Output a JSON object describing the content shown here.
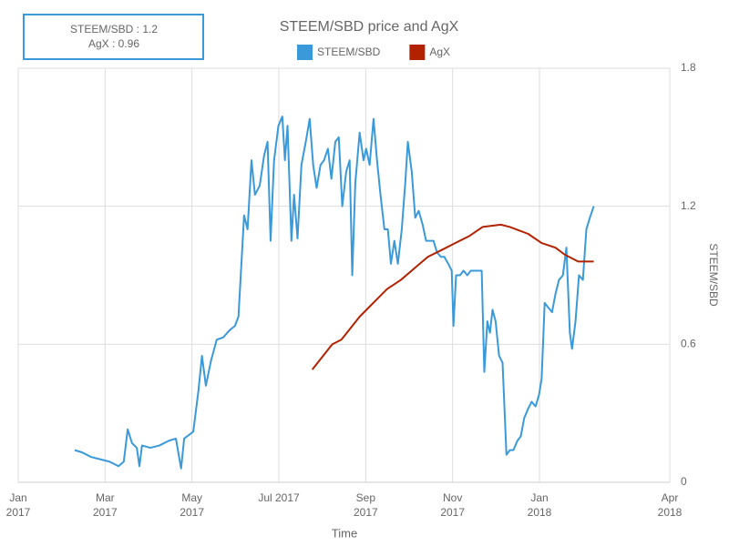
{
  "chart_data": {
    "type": "line",
    "title": "STEEM/SBD price and AgX",
    "x_label": "Time",
    "y_label": "STEEM/SBD",
    "tooltip": [
      "STEEM/SBD : 1.2",
      "AgX : 0.96"
    ],
    "xlim": [
      0,
      15
    ],
    "xticks": [
      {
        "value": 0,
        "label": "Jan\n2017"
      },
      {
        "value": 2,
        "label": "Mar\n2017"
      },
      {
        "value": 4,
        "label": "May\n2017"
      },
      {
        "value": 6,
        "label": "Jul 2017"
      },
      {
        "value": 8,
        "label": "Sep\n2017"
      },
      {
        "value": 10,
        "label": "Nov\n2017"
      },
      {
        "value": 12,
        "label": "Jan\n2018"
      },
      {
        "value": 15,
        "label": "Apr\n2018"
      }
    ],
    "ylim": [
      0,
      1.8
    ],
    "yticks": [
      0,
      0.6,
      1.2,
      1.8
    ],
    "grid": true,
    "series": [
      {
        "name": "STEEM/SBD",
        "color": "#3a9ad9",
        "x": [
          1.3,
          1.47,
          1.68,
          1.89,
          2.1,
          2.31,
          2.43,
          2.52,
          2.62,
          2.73,
          2.79,
          2.85,
          3.04,
          3.25,
          3.46,
          3.63,
          3.75,
          3.82,
          4.03,
          4.15,
          4.23,
          4.32,
          4.44,
          4.57,
          4.72,
          4.86,
          4.99,
          5.07,
          5.2,
          5.28,
          5.37,
          5.45,
          5.56,
          5.66,
          5.74,
          5.81,
          5.89,
          5.99,
          6.08,
          6.14,
          6.2,
          6.29,
          6.35,
          6.43,
          6.52,
          6.62,
          6.71,
          6.79,
          6.87,
          6.96,
          7.04,
          7.13,
          7.21,
          7.3,
          7.38,
          7.46,
          7.55,
          7.63,
          7.69,
          7.76,
          7.86,
          7.95,
          8.01,
          8.09,
          8.18,
          8.26,
          8.34,
          8.43,
          8.51,
          8.58,
          8.66,
          8.74,
          8.83,
          8.91,
          8.97,
          9.06,
          9.14,
          9.22,
          9.31,
          9.39,
          9.48,
          9.56,
          9.64,
          9.73,
          9.81,
          9.9,
          9.98,
          10.02,
          10.08,
          10.17,
          10.25,
          10.34,
          10.42,
          10.5,
          10.59,
          10.67,
          10.73,
          10.8,
          10.86,
          10.92,
          10.99,
          11.07,
          11.15,
          11.24,
          11.32,
          11.4,
          11.49,
          11.57,
          11.65,
          11.74,
          11.82,
          11.91,
          11.99,
          12.05,
          12.12,
          12.2,
          12.29,
          12.37,
          12.45,
          12.54,
          12.62,
          12.7,
          12.75,
          12.83,
          12.91,
          13.0,
          13.08,
          13.16,
          13.25
        ],
        "values": [
          0.14,
          0.13,
          0.11,
          0.1,
          0.09,
          0.07,
          0.09,
          0.23,
          0.17,
          0.15,
          0.07,
          0.16,
          0.15,
          0.16,
          0.18,
          0.19,
          0.06,
          0.19,
          0.22,
          0.4,
          0.55,
          0.42,
          0.53,
          0.62,
          0.63,
          0.66,
          0.68,
          0.72,
          1.16,
          1.1,
          1.4,
          1.25,
          1.29,
          1.42,
          1.48,
          1.05,
          1.4,
          1.55,
          1.59,
          1.4,
          1.55,
          1.05,
          1.25,
          1.06,
          1.38,
          1.48,
          1.58,
          1.38,
          1.28,
          1.38,
          1.4,
          1.45,
          1.32,
          1.48,
          1.5,
          1.2,
          1.35,
          1.4,
          0.9,
          1.3,
          1.52,
          1.4,
          1.45,
          1.38,
          1.58,
          1.4,
          1.25,
          1.1,
          1.1,
          0.95,
          1.05,
          0.95,
          1.1,
          1.3,
          1.48,
          1.35,
          1.15,
          1.18,
          1.12,
          1.05,
          1.05,
          1.05,
          1.0,
          0.98,
          0.98,
          0.95,
          0.92,
          0.68,
          0.9,
          0.9,
          0.92,
          0.9,
          0.92,
          0.92,
          0.92,
          0.92,
          0.48,
          0.7,
          0.65,
          0.75,
          0.7,
          0.55,
          0.52,
          0.12,
          0.14,
          0.14,
          0.18,
          0.2,
          0.28,
          0.32,
          0.35,
          0.33,
          0.38,
          0.45,
          0.78,
          0.76,
          0.74,
          0.82,
          0.88,
          0.9,
          1.02,
          0.65,
          0.58,
          0.7,
          0.9,
          0.88,
          1.1,
          1.15,
          1.2
        ]
      },
      {
        "name": "AgX",
        "color": "#b22200",
        "x": [
          6.77,
          7.02,
          7.23,
          7.44,
          7.65,
          7.86,
          8.07,
          8.28,
          8.49,
          8.81,
          9.12,
          9.43,
          9.75,
          10.06,
          10.38,
          10.69,
          11.11,
          11.32,
          11.74,
          12.05,
          12.37,
          12.58,
          12.89,
          13.1,
          13.25
        ],
        "values": [
          0.49,
          0.55,
          0.6,
          0.62,
          0.67,
          0.72,
          0.76,
          0.8,
          0.84,
          0.88,
          0.93,
          0.98,
          1.01,
          1.04,
          1.07,
          1.11,
          1.12,
          1.11,
          1.08,
          1.04,
          1.02,
          0.99,
          0.96,
          0.96,
          0.96
        ]
      }
    ]
  }
}
